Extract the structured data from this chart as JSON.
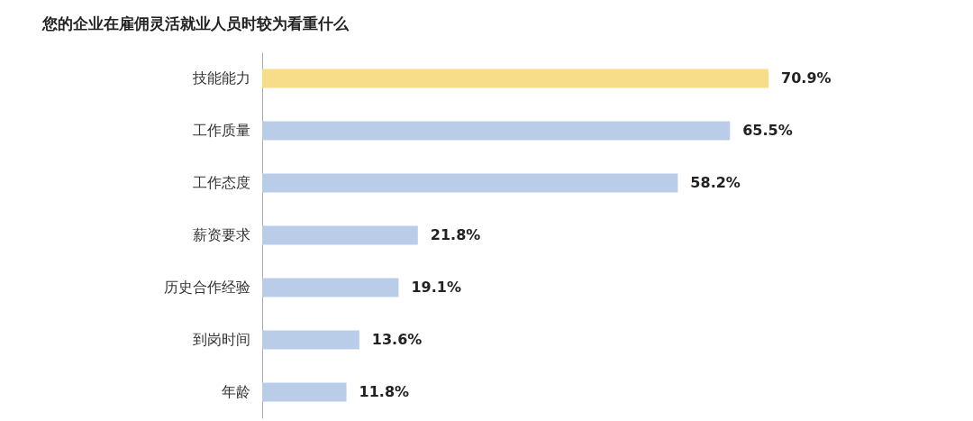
{
  "chart_data": {
    "type": "bar",
    "orientation": "horizontal",
    "title": "您的企业在雇佣灵活就业人员时较为看重什么",
    "categories": [
      "技能能力",
      "工作质量",
      "工作态度",
      "薪资要求",
      "历史合作经验",
      "到岗时间",
      "年龄"
    ],
    "values": [
      70.9,
      65.5,
      58.2,
      21.8,
      19.1,
      13.6,
      11.8
    ],
    "value_labels": [
      "70.9%",
      "65.5%",
      "58.2%",
      "21.8%",
      "19.1%",
      "13.6%",
      "11.8%"
    ],
    "colors": [
      "#f7dc8a",
      "#b9cde9",
      "#b9cde9",
      "#b9cde9",
      "#b9cde9",
      "#b9cde9",
      "#b9cde9"
    ]
  }
}
